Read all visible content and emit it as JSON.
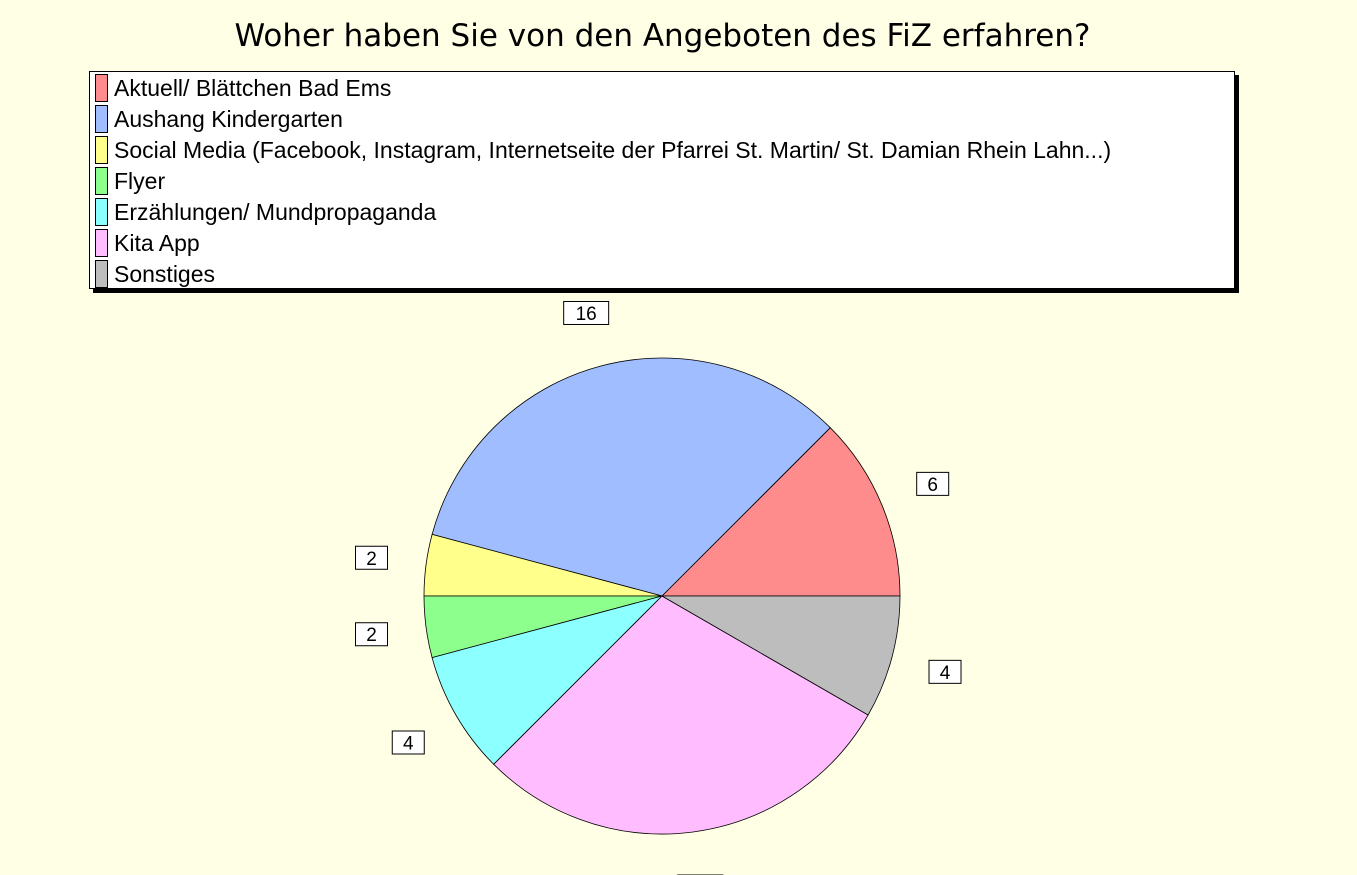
{
  "chart_data": {
    "type": "pie",
    "title": "Woher haben Sie von den Angeboten des FiZ erfahren?",
    "legend_position": "top",
    "slices": [
      {
        "label": "Aktuell/ Blättchen Bad Ems",
        "value": 6,
        "color": "#ff8c8c"
      },
      {
        "label": "Aushang Kindergarten",
        "value": 16,
        "color": "#a0bdff"
      },
      {
        "label": "Social Media (Facebook, Instagram, Internetseite der Pfarrei St. Martin/ St. Damian Rhein Lahn...)",
        "value": 2,
        "color": "#ffff8c"
      },
      {
        "label": "Flyer",
        "value": 2,
        "color": "#8cff8c"
      },
      {
        "label": "Erzählungen/ Mundpropaganda",
        "value": 4,
        "color": "#8cffff"
      },
      {
        "label": "Kita App",
        "value": 14,
        "color": "#ffbdff"
      },
      {
        "label": "Sonstiges",
        "value": 4,
        "color": "#bdbdbd"
      }
    ]
  }
}
